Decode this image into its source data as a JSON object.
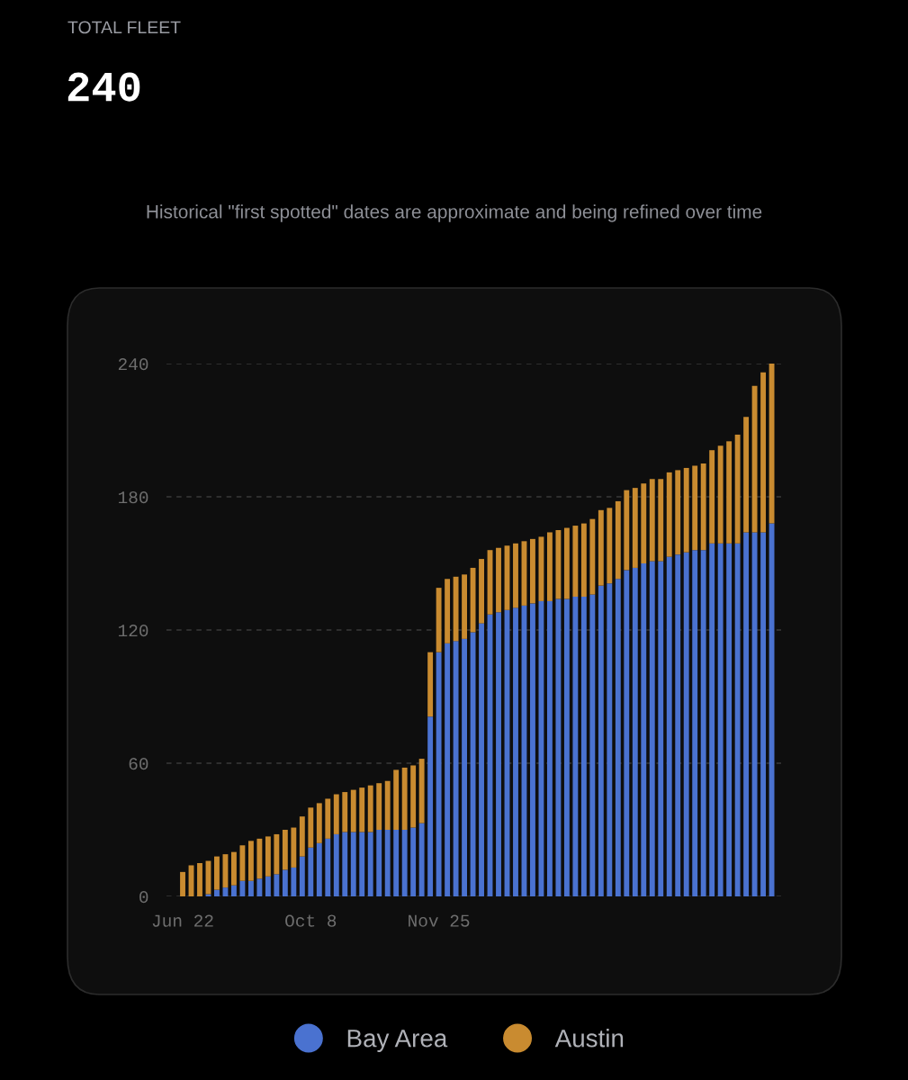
{
  "chart_data": {
    "type": "bar",
    "title": "TOTAL FLEET",
    "subtitle": "240",
    "annotations": [
      "Historical \"first spotted\" dates are approximate and being refined over time"
    ],
    "categories": [
      "Jun 22",
      null,
      null,
      null,
      null,
      null,
      null,
      null,
      null,
      null,
      null,
      null,
      null,
      null,
      null,
      "Oct 8",
      null,
      null,
      null,
      null,
      null,
      null,
      null,
      null,
      null,
      null,
      null,
      null,
      null,
      null,
      "Nov 25",
      null,
      null,
      null,
      null,
      null,
      null,
      null,
      null,
      null,
      null,
      null,
      null,
      null,
      null,
      null,
      null,
      null,
      null,
      null,
      null,
      null,
      null,
      null,
      null,
      null,
      null,
      null,
      null,
      null,
      null,
      null,
      null,
      null,
      null,
      null,
      null,
      null,
      null,
      null
    ],
    "stacked": true,
    "series": [
      {
        "name": "Bay Area",
        "color": "#4a72d0",
        "values": [
          0,
          0,
          0,
          1,
          3,
          4,
          5,
          7,
          7,
          8,
          9,
          10,
          12,
          13,
          18,
          22,
          24,
          26,
          28,
          29,
          29,
          29,
          29,
          30,
          30,
          30,
          30,
          31,
          33,
          81,
          110,
          114,
          115,
          116,
          119,
          123,
          127,
          128,
          129,
          130,
          131,
          132,
          133,
          133,
          134,
          134,
          135,
          135,
          136,
          140,
          141,
          143,
          147,
          148,
          150,
          151,
          151,
          153,
          154,
          155,
          156,
          156,
          159,
          159,
          159,
          159,
          164,
          164,
          164,
          168
        ]
      },
      {
        "name": "Austin",
        "color": "#c98b30",
        "values": [
          11,
          14,
          15,
          15,
          15,
          15,
          15,
          16,
          18,
          18,
          18,
          18,
          18,
          18,
          18,
          18,
          18,
          18,
          18,
          18,
          19,
          20,
          21,
          21,
          22,
          27,
          28,
          28,
          29,
          29,
          29,
          29,
          29,
          29,
          29,
          29,
          29,
          29,
          29,
          29,
          29,
          29,
          29,
          31,
          31,
          32,
          32,
          33,
          34,
          34,
          34,
          35,
          36,
          36,
          36,
          37,
          37,
          38,
          38,
          38,
          38,
          39,
          42,
          44,
          46,
          49,
          52,
          66,
          72,
          72
        ]
      }
    ],
    "ylim": [
      0,
      240
    ],
    "yticks": [
      0,
      60,
      120,
      180,
      240
    ],
    "grid": "y",
    "legend": "bottom"
  }
}
